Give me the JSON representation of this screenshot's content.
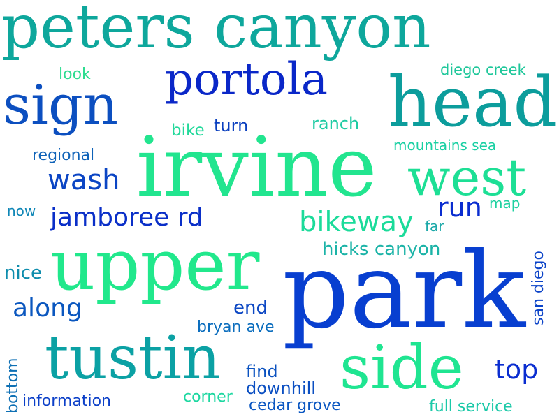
{
  "words": {
    "peters_canyon": {
      "text": "peters canyon",
      "color": "#0ea79c"
    },
    "portola": {
      "text": "portola",
      "color": "#0a27c8"
    },
    "sign": {
      "text": "sign",
      "color": "#0c4fc0"
    },
    "head": {
      "text": "head",
      "color": "#0c9d9c"
    },
    "irvine": {
      "text": "irvine",
      "color": "#22e58f"
    },
    "west": {
      "text": "west",
      "color": "#1ddf95"
    },
    "look": {
      "text": "look",
      "color": "#2ddc90"
    },
    "diego_creek": {
      "text": "diego creek",
      "color": "#1ec79a"
    },
    "turn": {
      "text": "turn",
      "color": "#0a3fbf"
    },
    "bike": {
      "text": "bike",
      "color": "#23d99b"
    },
    "ranch": {
      "text": "ranch",
      "color": "#1ecba3"
    },
    "mountains_sea": {
      "text": "mountains sea",
      "color": "#19d0a3"
    },
    "regional": {
      "text": "regional",
      "color": "#0e62b8"
    },
    "wash": {
      "text": "wash",
      "color": "#0b45c4"
    },
    "now": {
      "text": "now",
      "color": "#0e86b6"
    },
    "jamboree_rd": {
      "text": "jamboree rd",
      "color": "#0a2fc8"
    },
    "bikeway": {
      "text": "bikeway",
      "color": "#1bdb9a"
    },
    "run": {
      "text": "run",
      "color": "#0a2dd0"
    },
    "map": {
      "text": "map",
      "color": "#1ed1a0"
    },
    "far": {
      "text": "far",
      "color": "#1aa8a8"
    },
    "upper": {
      "text": "upper",
      "color": "#21e88c"
    },
    "hicks_canyon": {
      "text": "hicks canyon",
      "color": "#1bb3a7"
    },
    "park": {
      "text": "park",
      "color": "#083fd0"
    },
    "nice": {
      "text": "nice",
      "color": "#0e8dad"
    },
    "along": {
      "text": "along",
      "color": "#0b57bf"
    },
    "end": {
      "text": "end",
      "color": "#0d48c4"
    },
    "bryan_ave": {
      "text": "bryan ave",
      "color": "#0c6ebe"
    },
    "san_diego": {
      "text": "san diego",
      "color": "#0b43c8"
    },
    "tustin": {
      "text": "tustin",
      "color": "#0ba1a4"
    },
    "side": {
      "text": "side",
      "color": "#1fe591"
    },
    "top": {
      "text": "top",
      "color": "#0a2dd0"
    },
    "find": {
      "text": "find",
      "color": "#0b52c0"
    },
    "downhill": {
      "text": "downhill",
      "color": "#0b4fc2"
    },
    "bottom": {
      "text": "bottom",
      "color": "#0e70b4"
    },
    "information": {
      "text": "information",
      "color": "#0b3fc8"
    },
    "corner": {
      "text": "corner",
      "color": "#1bd7a0"
    },
    "cedar_grove": {
      "text": "cedar grove",
      "color": "#0b57c2"
    },
    "full_service": {
      "text": "full service",
      "color": "#1bc9a8"
    }
  }
}
